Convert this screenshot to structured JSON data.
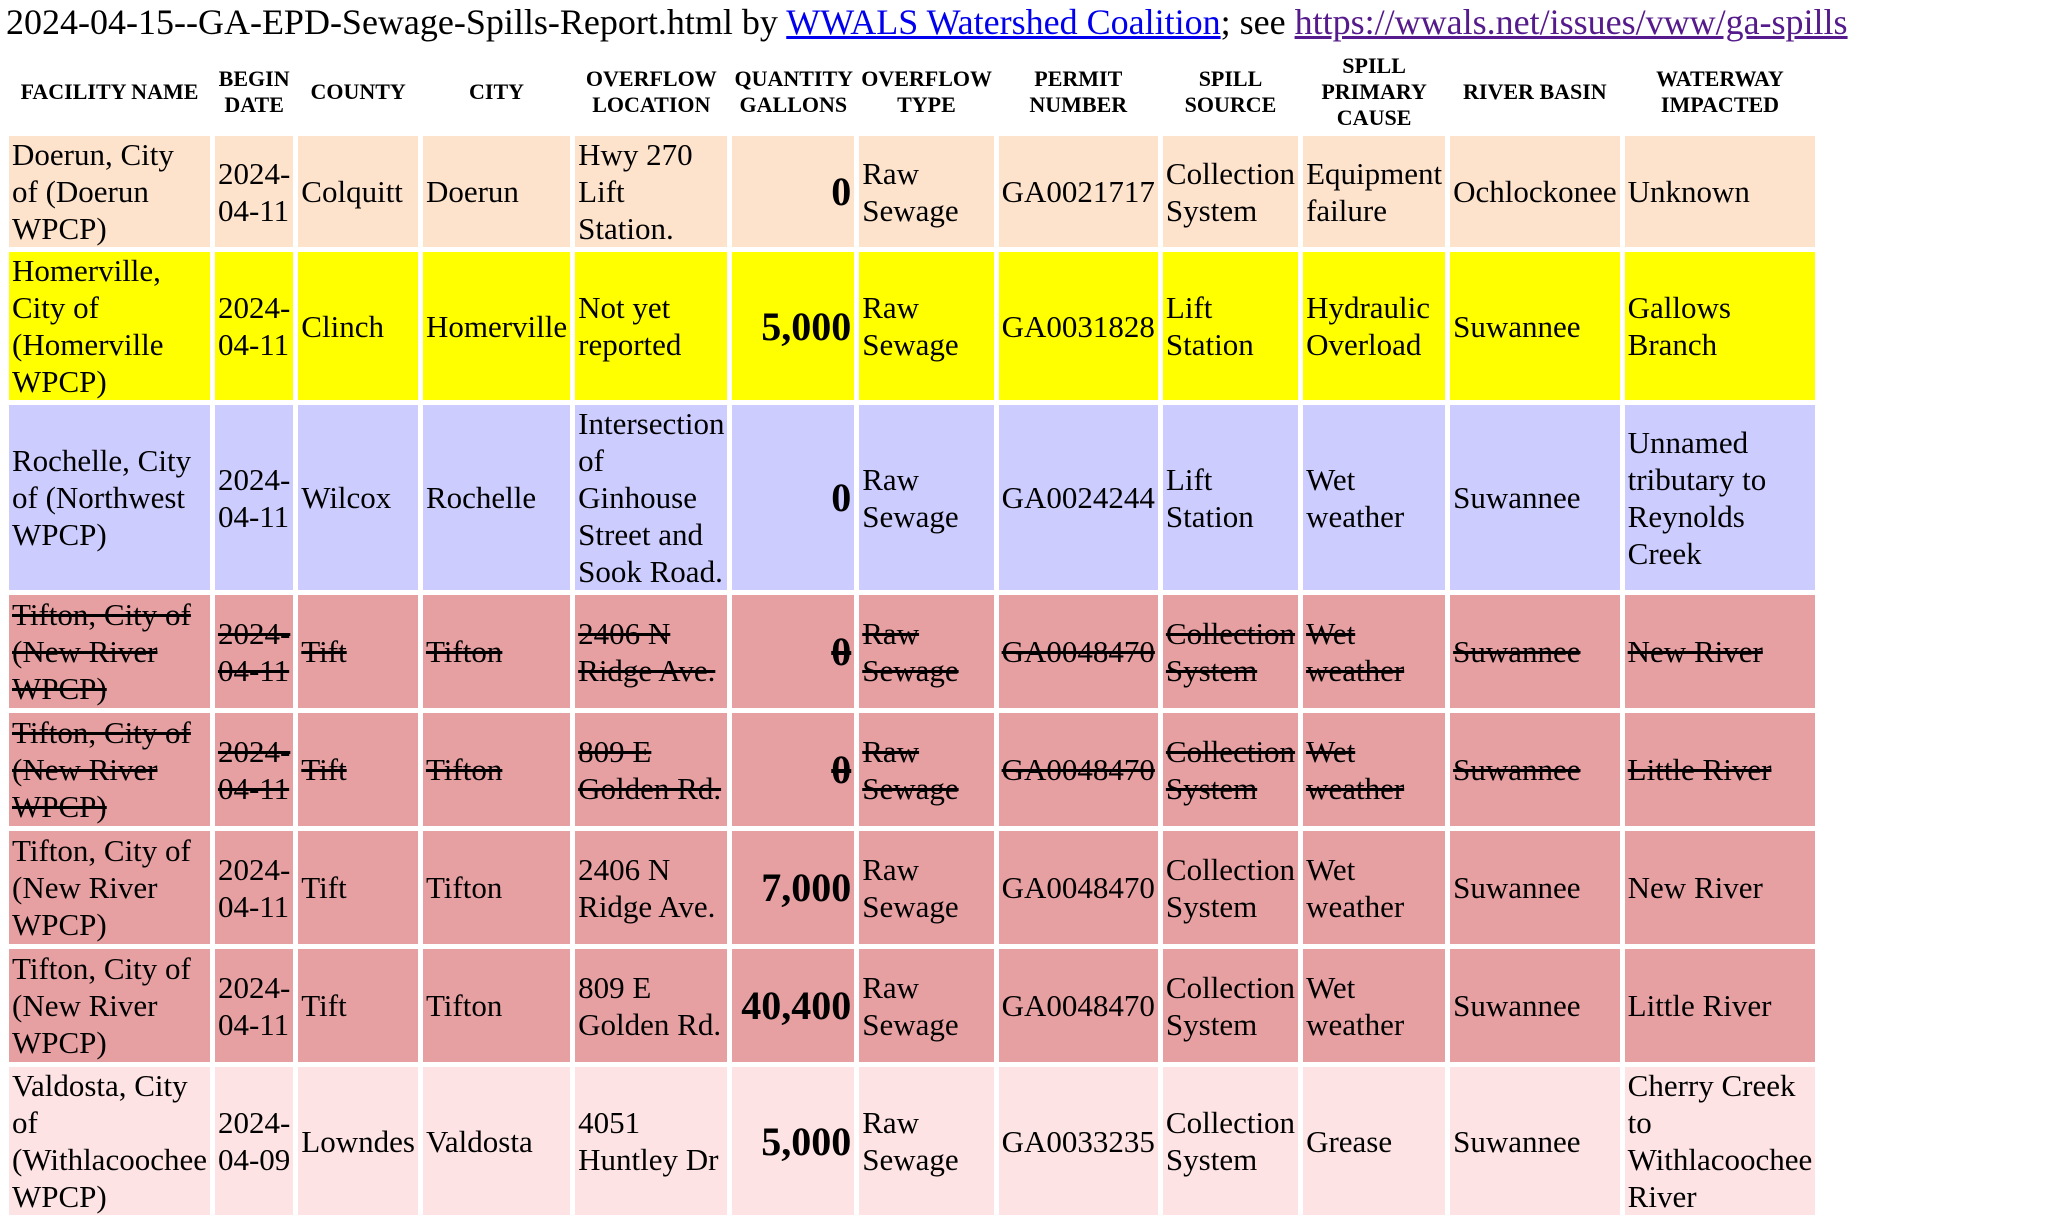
{
  "heading": {
    "filename": "2024-04-15--GA-EPD-Sewage-Spills-Report.html",
    "by_text": " by ",
    "org_link": "WWALS Watershed Coalition",
    "see_text": "; see ",
    "url_link": "https://wwals.net/issues/vww/ga-spills"
  },
  "columns": [
    "Facility Name",
    "Begin Date",
    "County",
    "City",
    "Overflow Location",
    "Quantity Gallons",
    "Overflow Type",
    "Permit Number",
    "Spill Source",
    "Spill Primary Cause",
    "River Basin",
    "Waterway Impacted"
  ],
  "row_colors": {
    "doerun": "#fde2cc",
    "homerville": "#ffff00",
    "rochelle": "#ccccff",
    "tifton": "#e7a0a2",
    "valdosta": "#fde3e3"
  },
  "rows": [
    {
      "color": "#fde2cc",
      "struck": false,
      "cells": [
        "Doerun, City of (Doerun WPCP)",
        "2024-04-11",
        "Colquitt",
        "Doerun",
        "Hwy 270 Lift Station.",
        "0",
        "Raw Sewage",
        "GA0021717",
        "Collection System",
        "Equipment failure",
        "Ochlockonee",
        "Unknown"
      ]
    },
    {
      "color": "#ffff00",
      "struck": false,
      "cells": [
        "Homerville, City of (Homerville WPCP)",
        "2024-04-11",
        "Clinch",
        "Homerville",
        "Not yet reported",
        "5,000",
        "Raw Sewage",
        "GA0031828",
        "Lift Station",
        "Hydraulic Overload",
        "Suwannee",
        "Gallows Branch"
      ]
    },
    {
      "color": "#ccccff",
      "struck": false,
      "cells": [
        "Rochelle, City of (Northwest WPCP)",
        "2024-04-11",
        "Wilcox",
        "Rochelle",
        "Intersection of Ginhouse Street and Sook Road.",
        "0",
        "Raw Sewage",
        "GA0024244",
        "Lift Station",
        "Wet weather",
        "Suwannee",
        "Unnamed tributary to Reynolds Creek"
      ]
    },
    {
      "color": "#e7a0a2",
      "struck": true,
      "cells": [
        "Tifton, City of (New River WPCP)",
        "2024-04-11",
        "Tift",
        "Tifton",
        "2406 N Ridge Ave.",
        "0",
        "Raw Sewage",
        "GA0048470",
        "Collection System",
        "Wet weather",
        "Suwannee",
        "New River"
      ]
    },
    {
      "color": "#e7a0a2",
      "struck": true,
      "cells": [
        "Tifton, City of (New River WPCP)",
        "2024-04-11",
        "Tift",
        "Tifton",
        "809 E Golden Rd.",
        "0",
        "Raw Sewage",
        "GA0048470",
        "Collection System",
        "Wet weather",
        "Suwannee",
        "Little River"
      ]
    },
    {
      "color": "#e7a0a2",
      "struck": false,
      "cells": [
        "Tifton, City of (New River WPCP)",
        "2024-04-11",
        "Tift",
        "Tifton",
        "2406 N Ridge Ave.",
        "7,000",
        "Raw Sewage",
        "GA0048470",
        "Collection System",
        "Wet weather",
        "Suwannee",
        "New River"
      ]
    },
    {
      "color": "#e7a0a2",
      "struck": false,
      "cells": [
        "Tifton, City of (New River WPCP)",
        "2024-04-11",
        "Tift",
        "Tifton",
        "809 E Golden Rd.",
        "40,400",
        "Raw Sewage",
        "GA0048470",
        "Collection System",
        "Wet weather",
        "Suwannee",
        "Little River"
      ]
    },
    {
      "color": "#fde3e3",
      "struck": false,
      "cells": [
        "Valdosta, City of (Withlacoochee WPCP)",
        "2024-04-09",
        "Lowndes",
        "Valdosta",
        "4051 Huntley Dr",
        "5,000",
        "Raw Sewage",
        "GA0033235",
        "Collection System",
        "Grease",
        "Suwannee",
        "Cherry Creek to Withlacoochee River"
      ]
    }
  ]
}
